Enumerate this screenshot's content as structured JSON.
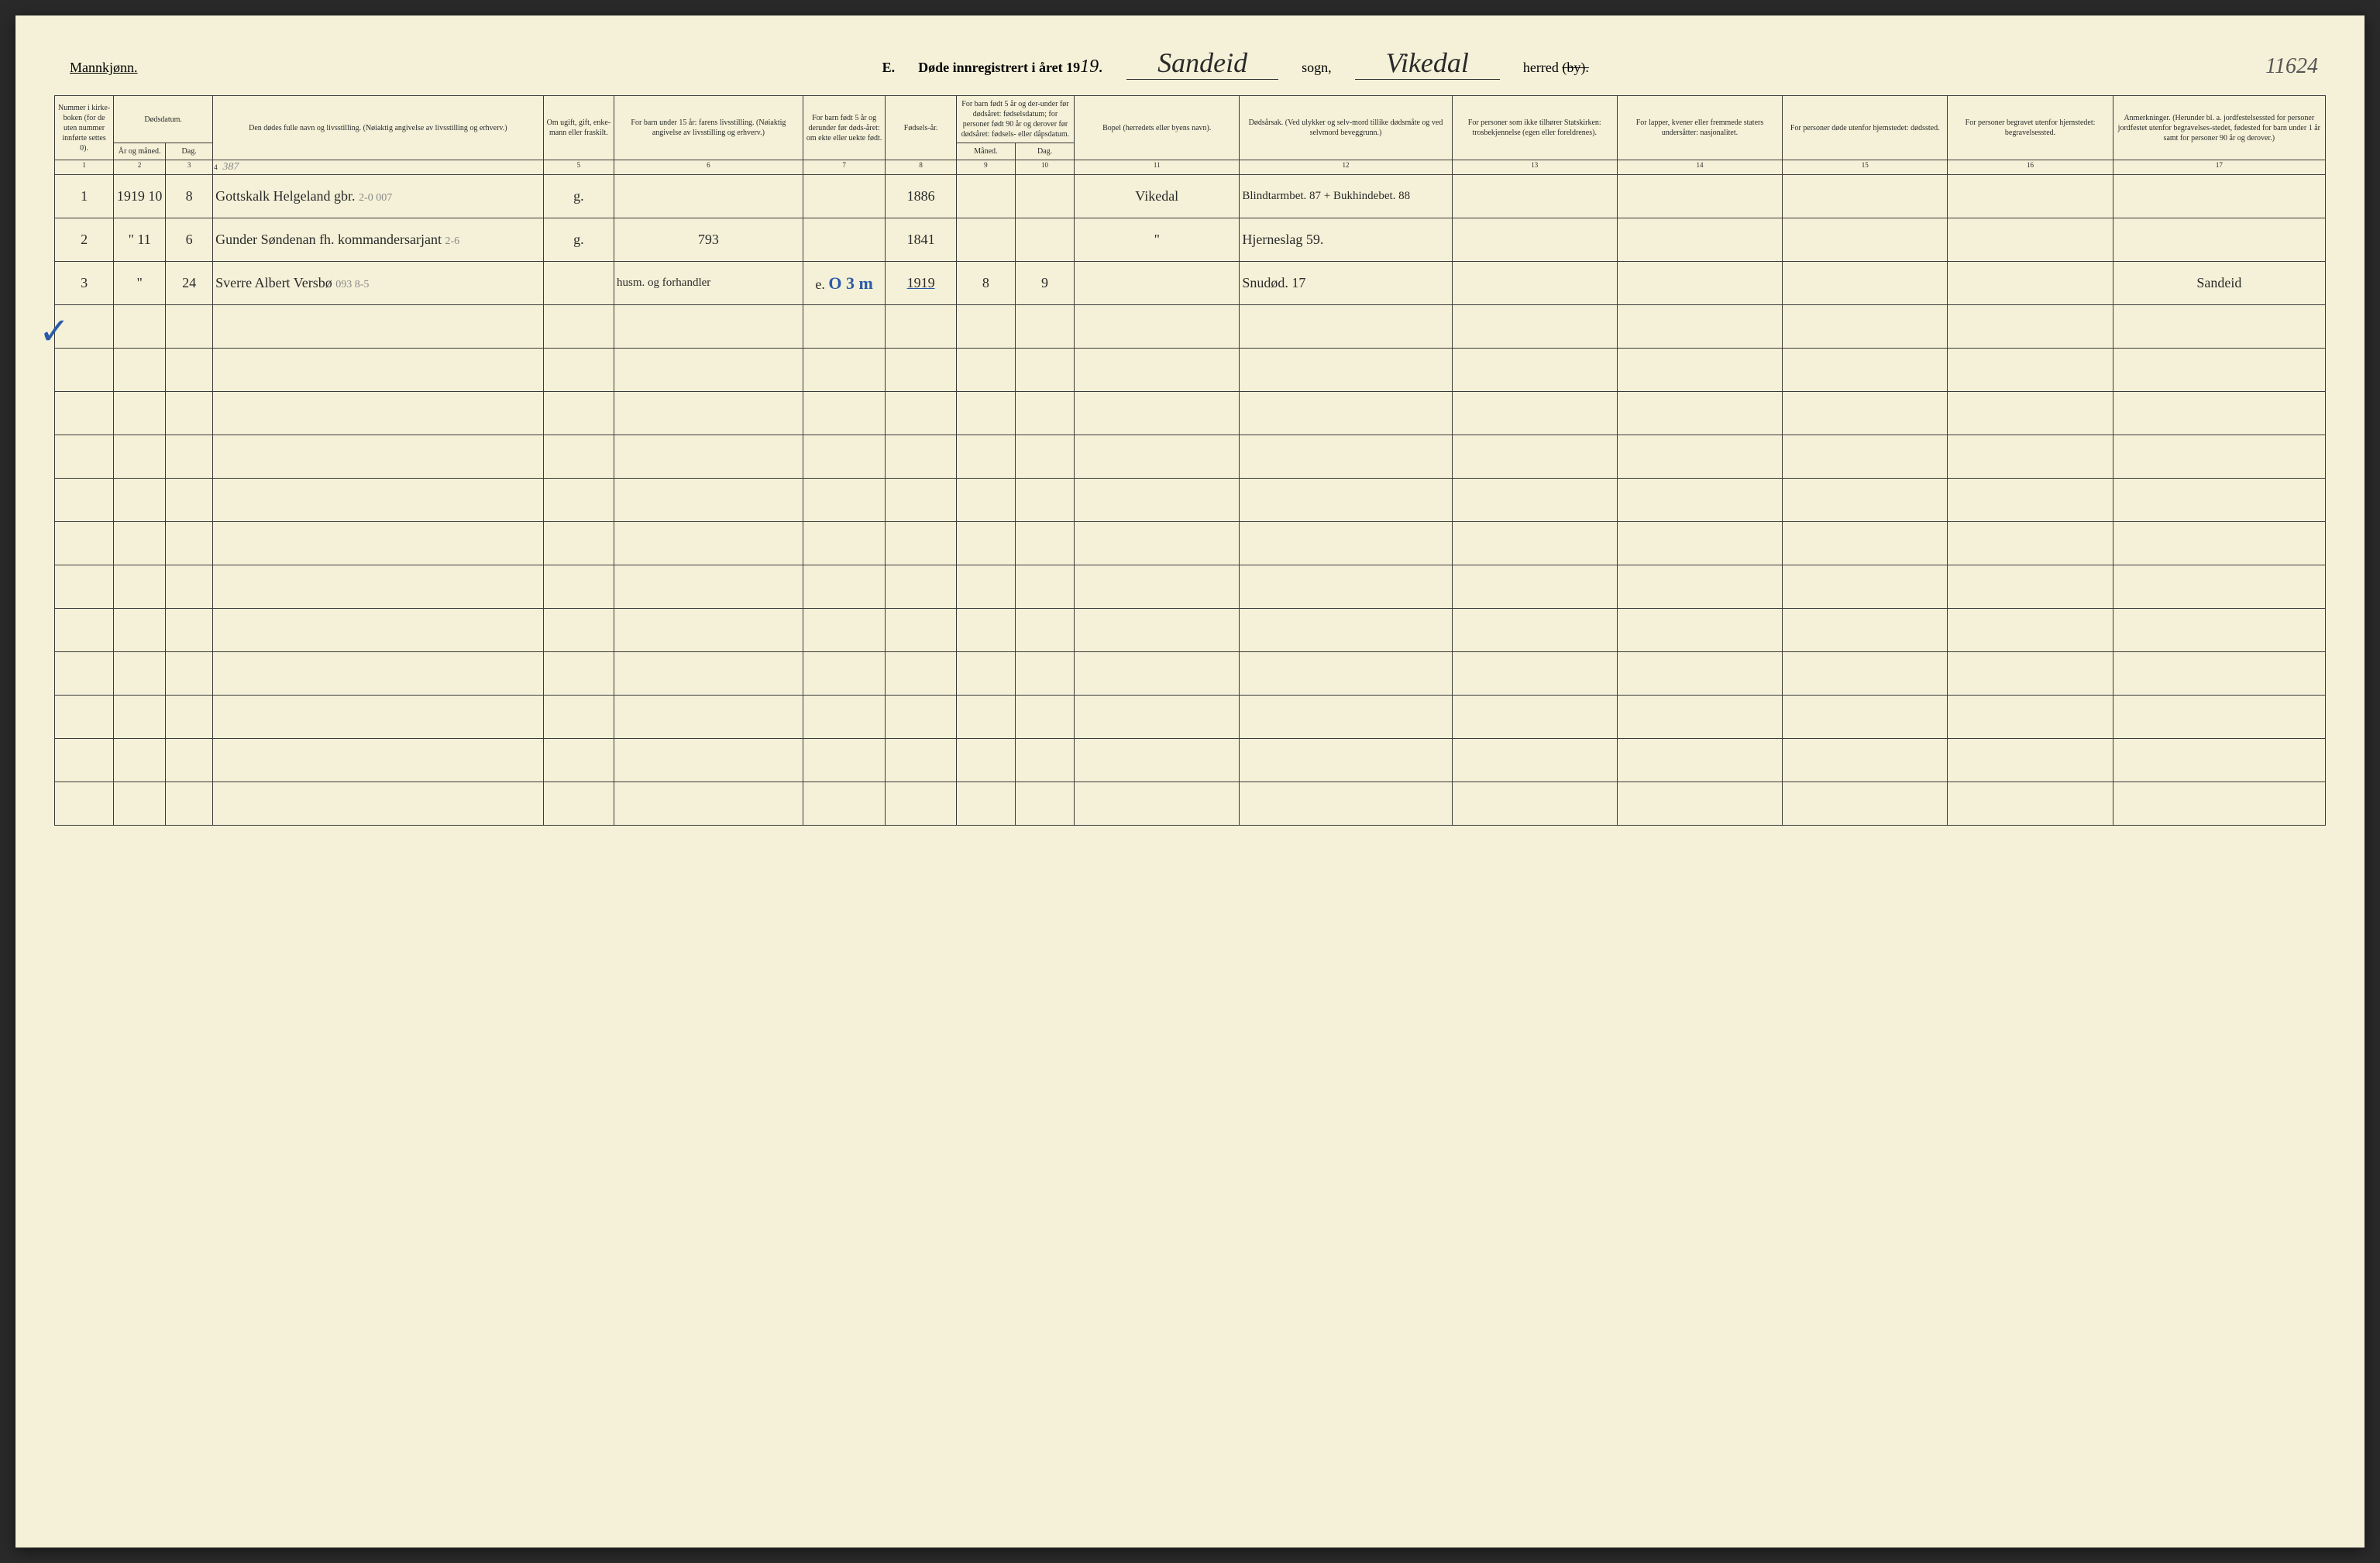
{
  "header": {
    "gender_label": "Mannkjønn.",
    "section_label": "E.",
    "title_prefix": "Døde innregistrert i året 19",
    "year_suffix": "19.",
    "sogn_value": "Sandeid",
    "sogn_label": "sogn,",
    "herred_value": "Vikedal",
    "herred_label": "herred",
    "by_struck": "(by).",
    "page_number": "11624"
  },
  "colgroups": {
    "c1": "Nummer i kirke-boken (for de uten nummer innførte settes 0).",
    "c2_3": "Dødsdatum.",
    "c2": "År og måned.",
    "c3": "Dag.",
    "c4": "Den dødes fulle navn og livsstilling. (Nøiaktig angivelse av livsstilling og erhverv.)",
    "c5": "Om ugift, gift, enke-mann eller fraskilt.",
    "c6": "For barn under 15 år: farens livsstilling. (Nøiaktig angivelse av livsstilling og erhverv.)",
    "c7": "For barn født 5 år og derunder før døds-året: om ekte eller uekte født.",
    "c8": "Fødsels-år.",
    "c9_10": "For barn født 5 år og der-under før dødsåret: fødselsdatum; for personer født 90 år og derover før dødsåret: fødsels- eller dåpsdatum.",
    "c9": "Måned.",
    "c10": "Dag.",
    "c11": "Bopel (herredets eller byens navn).",
    "c12": "Dødsårsak. (Ved ulykker og selv-mord tillike dødsmåte og ved selvmord beveggrunn.)",
    "c13": "For personer som ikke tilhører Statskirken: trosbekjennelse (egen eller foreldrenes).",
    "c14": "For lapper, kvener eller fremmede staters undersåtter: nasjonalitet.",
    "c15": "For personer døde utenfor hjemstedet: dødssted.",
    "c16": "For personer begravet utenfor hjemstedet: begravelsessted.",
    "c17": "Anmerkninger. (Herunder bl. a. jordfestelsessted for personer jordfestet utenfor begravelses-stedet, fødested for barn under 1 år samt for personer 90 år og derover.)"
  },
  "colnums": [
    "1",
    "2",
    "3",
    "4",
    "5",
    "6",
    "7",
    "8",
    "9",
    "10",
    "11",
    "12",
    "13",
    "14",
    "15",
    "16",
    "17"
  ],
  "pencil_note": "387",
  "rows": [
    {
      "n": "1",
      "year_month": "1919 10",
      "day": "8",
      "name": "Gottskalk Helgeland gbr.",
      "civil": "g.",
      "c6": "",
      "c7": "",
      "birth": "1886",
      "m": "",
      "d": "",
      "bopel": "Vikedal",
      "cause": "Blindtarmbet. 87 + Bukhindebet. 88",
      "c13": "",
      "c14": "",
      "c15": "",
      "c16": "",
      "c17": "",
      "pencil": "2-0  007"
    },
    {
      "n": "2",
      "year_month": "\" 11",
      "day": "6",
      "name": "Gunder Søndenan fh. kommandersarjant",
      "civil": "g.",
      "c6": "793",
      "c7": "",
      "birth": "1841",
      "m": "",
      "d": "",
      "bopel": "\"",
      "cause": "Hjerneslag 59.",
      "c13": "",
      "c14": "",
      "c15": "",
      "c16": "",
      "c17": "",
      "pencil": "2-6"
    },
    {
      "n": "3",
      "year_month": "\"",
      "day": "24",
      "name": "Sverre Albert Versbø",
      "civil": "",
      "c6": "husm. og forhandler",
      "c7": "e.",
      "birth": "1919",
      "m": "8",
      "d": "9",
      "bopel": "",
      "cause": "Snudød. 17",
      "c13": "",
      "c14": "",
      "c15": "",
      "c16": "",
      "c17": "Sandeid",
      "pencil": "093  8-5",
      "blue": "O 3 m"
    }
  ],
  "blank_rows": 12,
  "checkmark": "✓"
}
